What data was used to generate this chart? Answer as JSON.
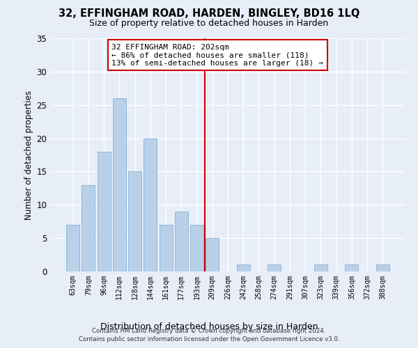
{
  "title": "32, EFFINGHAM ROAD, HARDEN, BINGLEY, BD16 1LQ",
  "subtitle": "Size of property relative to detached houses in Harden",
  "xlabel": "Distribution of detached houses by size in Harden",
  "ylabel": "Number of detached properties",
  "bar_labels": [
    "63sqm",
    "79sqm",
    "96sqm",
    "112sqm",
    "128sqm",
    "144sqm",
    "161sqm",
    "177sqm",
    "193sqm",
    "209sqm",
    "226sqm",
    "242sqm",
    "258sqm",
    "274sqm",
    "291sqm",
    "307sqm",
    "323sqm",
    "339sqm",
    "356sqm",
    "372sqm",
    "388sqm"
  ],
  "bar_values": [
    7,
    13,
    18,
    26,
    15,
    20,
    7,
    9,
    7,
    5,
    0,
    1,
    0,
    1,
    0,
    0,
    1,
    0,
    1,
    0,
    1
  ],
  "bar_color": "#b8d0e8",
  "bar_edge_color": "#8ab0d0",
  "vline_color": "#cc0000",
  "annotation_text": "32 EFFINGHAM ROAD: 202sqm\n← 86% of detached houses are smaller (118)\n13% of semi-detached houses are larger (18) →",
  "annotation_box_color": "#ffffff",
  "annotation_box_edge": "#cc0000",
  "ylim": [
    0,
    35
  ],
  "yticks": [
    0,
    5,
    10,
    15,
    20,
    25,
    30,
    35
  ],
  "background_color": "#e8eef8",
  "fig_background_color": "#e8eef8",
  "grid_color": "#ffffff",
  "footer_line1": "Contains HM Land Registry data © Crown copyright and database right 2024.",
  "footer_line2": "Contains public sector information licensed under the Open Government Licence v3.0."
}
